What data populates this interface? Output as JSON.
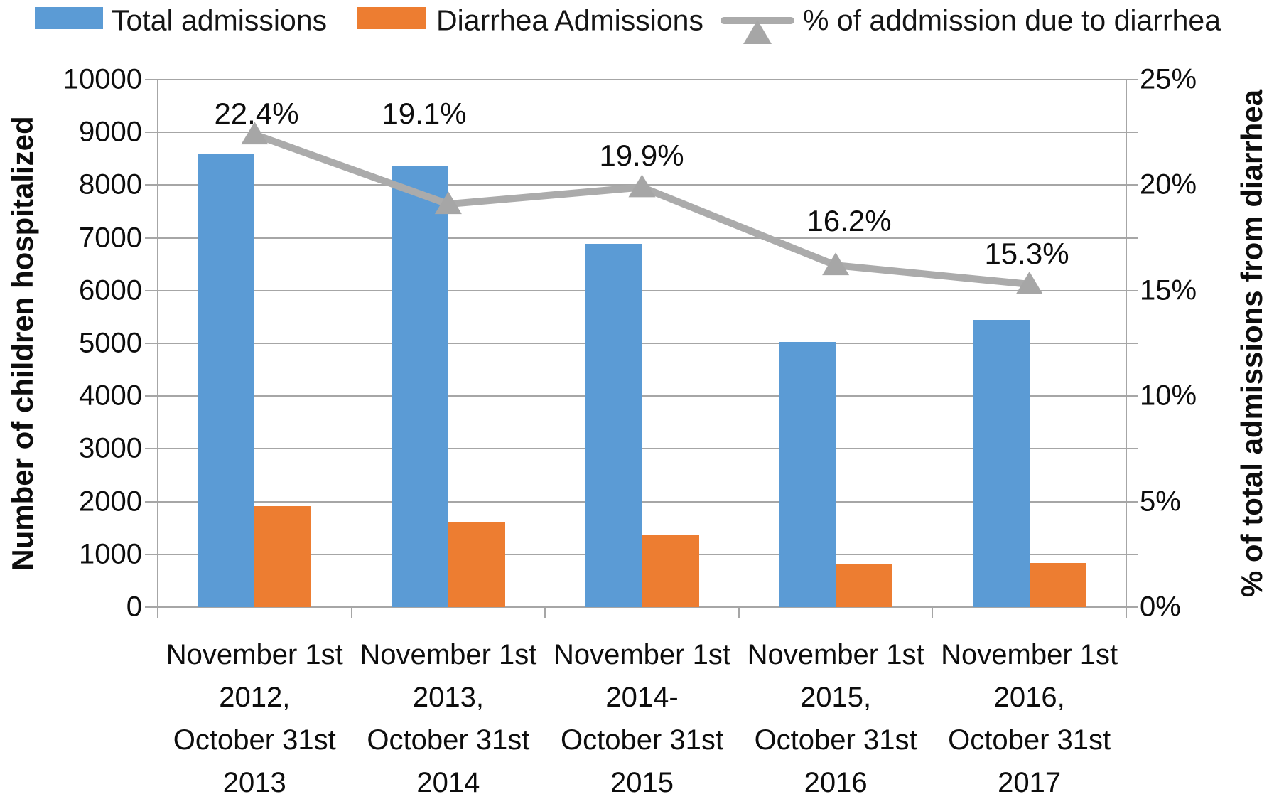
{
  "chart_data": {
    "type": "bar",
    "subtype": "combo-bar-line",
    "categories": [
      [
        "November 1st",
        "2012,",
        "October 31st",
        "2013"
      ],
      [
        "November 1st",
        "2013,",
        "October 31st",
        "2014"
      ],
      [
        "November 1st",
        "2014-",
        "October 31st",
        "2015"
      ],
      [
        "November 1st",
        "2015,",
        "October 31st",
        "2016"
      ],
      [
        "November 1st",
        "2016,",
        "October 31st",
        "2017"
      ]
    ],
    "series": [
      {
        "name": "Total admissions",
        "type": "bar",
        "color": "#5B9BD5",
        "values": [
          8590,
          8360,
          6890,
          5030,
          5440
        ]
      },
      {
        "name": "Diarrhea Admissions",
        "type": "bar",
        "color": "#ED7D31",
        "values": [
          1920,
          1600,
          1370,
          815,
          835
        ]
      },
      {
        "name": "% of addmission due to diarrhea",
        "type": "line",
        "axis": "right",
        "color": "#ABABAB",
        "marker_color": "#A6A6A6",
        "marker": "triangle",
        "values": [
          22.4,
          19.1,
          19.9,
          16.2,
          15.3
        ],
        "point_labels": [
          "22.4%",
          "19.1%",
          "19.9%",
          "16.2%",
          "15.3%"
        ],
        "point_label_positions": [
          [
            139,
            48
          ],
          [
            375,
            48
          ],
          [
            681,
            107
          ],
          [
            973,
            199
          ],
          [
            1223,
            245
          ]
        ]
      }
    ],
    "left_axis": {
      "title": "Number of children hospitalized",
      "min": 0,
      "max": 10000,
      "step": 1000,
      "ticks": [
        "10000",
        "9000",
        "8000",
        "7000",
        "6000",
        "5000",
        "4000",
        "3000",
        "2000",
        "1000",
        "0"
      ]
    },
    "right_axis": {
      "title": "% of total admissions from diarrhea",
      "min": 0,
      "max": 25,
      "step": 5,
      "ticks": [
        "25%",
        "20%",
        "15%",
        "10%",
        "5%",
        "0%"
      ]
    },
    "grid": true,
    "legend_position": "top",
    "gridline_color": "#A6A6A6",
    "text_color": "#0d0d0d"
  }
}
